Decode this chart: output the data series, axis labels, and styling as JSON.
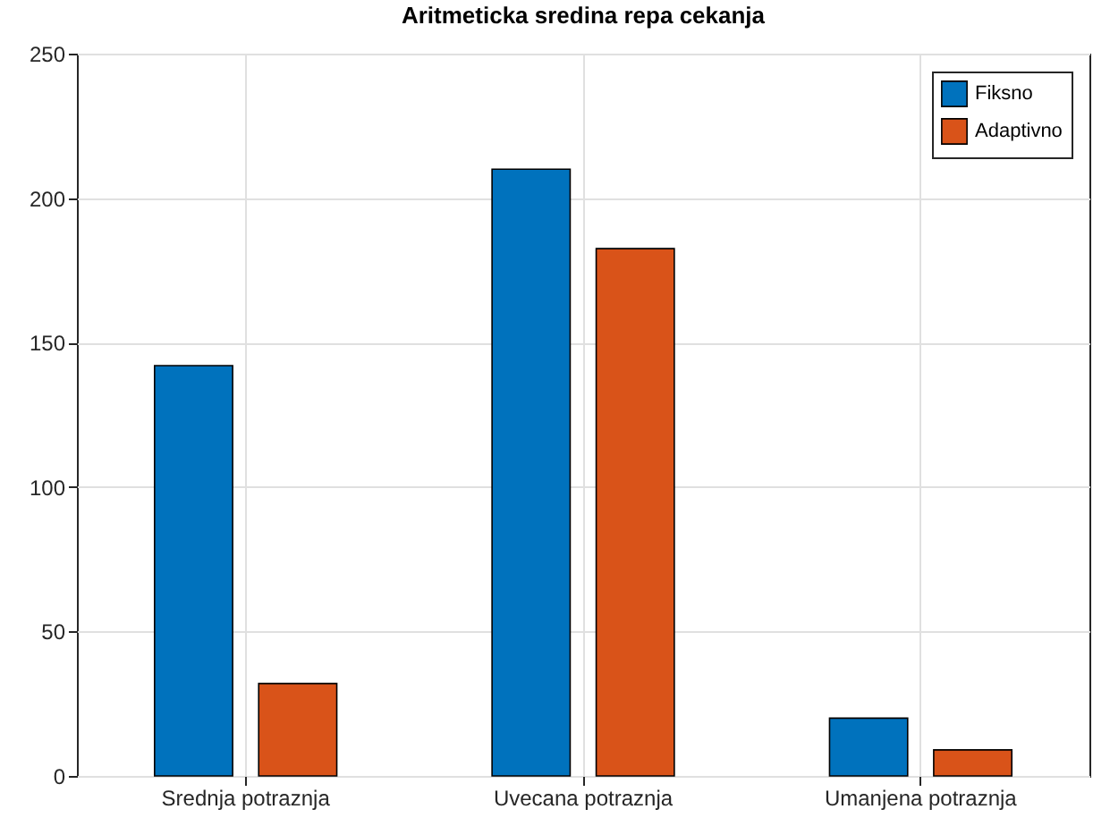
{
  "chart_data": {
    "type": "bar",
    "title": "Aritmeticka sredina repa cekanja",
    "categories": [
      "Srednja potraznja",
      "Uvecana potraznja",
      "Umanjena potraznja"
    ],
    "series": [
      {
        "name": "Fiksno",
        "color": "#0072bd",
        "values": [
          142,
          210,
          20
        ]
      },
      {
        "name": "Adaptivno",
        "color": "#d95319",
        "values": [
          32,
          182.5,
          9
        ]
      }
    ],
    "ylim": [
      0,
      250
    ],
    "yticks": [
      0,
      50,
      100,
      150,
      200,
      250
    ],
    "grid": true,
    "legend": "top right"
  }
}
